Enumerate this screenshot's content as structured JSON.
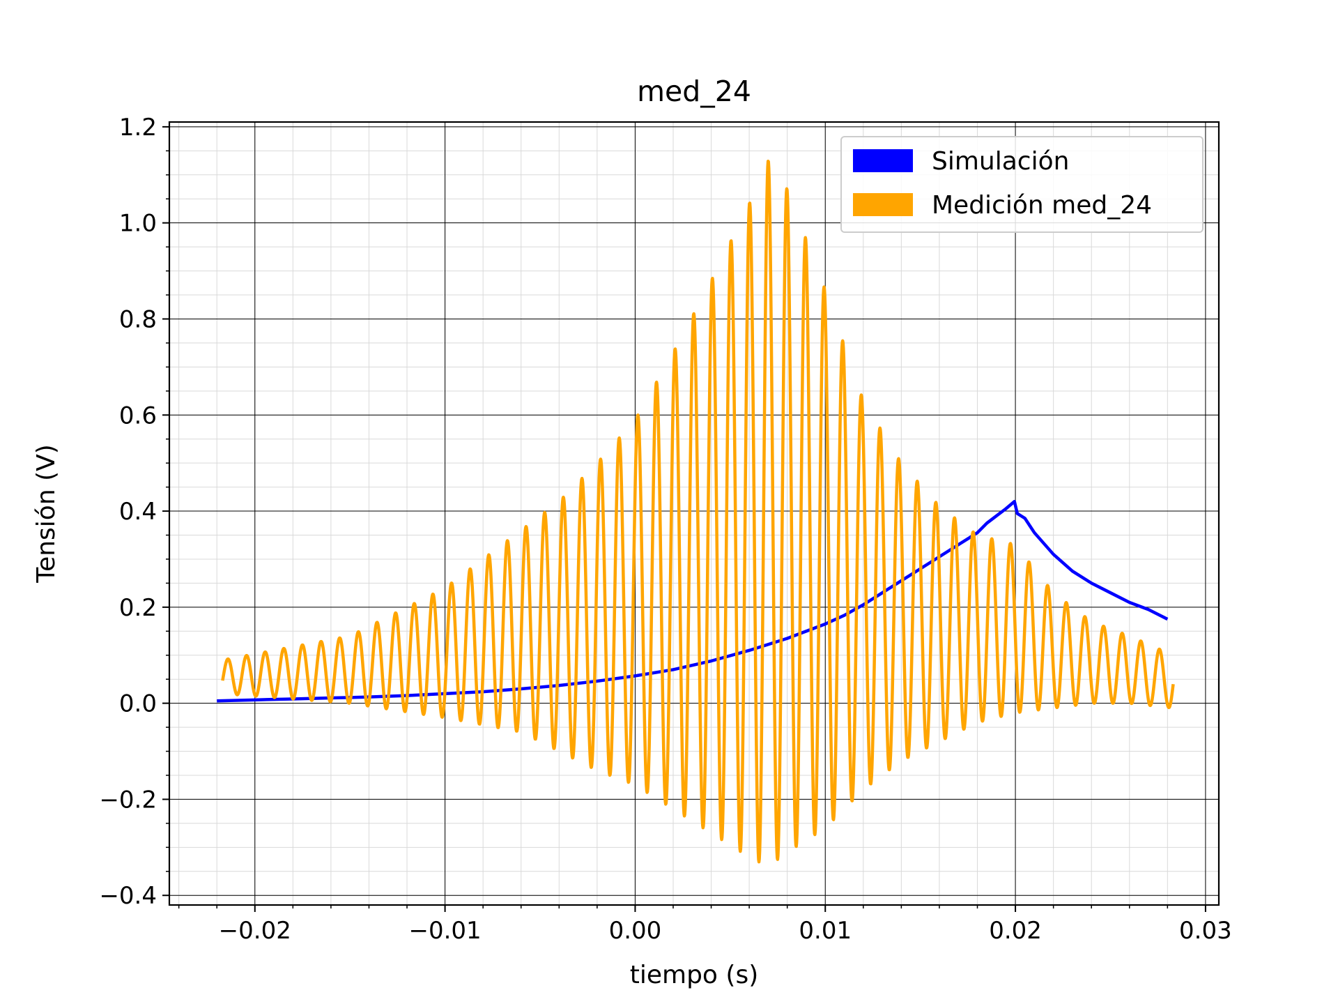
{
  "chart_data": {
    "type": "line",
    "title": "med_24",
    "xlabel": "tiempo (s)",
    "ylabel": "Tensión (V)",
    "xlim": [
      -0.0245,
      0.0307
    ],
    "ylim": [
      -0.42,
      1.21
    ],
    "x_ticks": [
      -0.02,
      -0.01,
      0.0,
      0.01,
      0.02,
      0.03
    ],
    "x_tick_labels": [
      "−0.02",
      "−0.01",
      "0.00",
      "0.01",
      "0.02",
      "0.03"
    ],
    "y_ticks": [
      -0.4,
      -0.2,
      0.0,
      0.2,
      0.4,
      0.6,
      0.8,
      1.0,
      1.2
    ],
    "y_tick_labels": [
      "−0.4",
      "−0.2",
      "0.0",
      "0.2",
      "0.4",
      "0.6",
      "0.8",
      "1.0",
      "1.2"
    ],
    "grid": true,
    "minor_grid": true,
    "legend_position": "top-right",
    "series": [
      {
        "name": "Simulación",
        "color": "#0000ff",
        "x": [
          -0.022,
          -0.02,
          -0.018,
          -0.016,
          -0.014,
          -0.012,
          -0.01,
          -0.008,
          -0.006,
          -0.004,
          -0.002,
          0.0,
          0.002,
          0.004,
          0.006,
          0.008,
          0.01,
          0.011,
          0.012,
          0.013,
          0.014,
          0.015,
          0.016,
          0.017,
          0.018,
          0.0185,
          0.019,
          0.0195,
          0.01995,
          0.0201,
          0.0205,
          0.021,
          0.022,
          0.023,
          0.024,
          0.025,
          0.026,
          0.027,
          0.028
        ],
        "y": [
          0.005,
          0.007,
          0.009,
          0.011,
          0.013,
          0.016,
          0.02,
          0.024,
          0.03,
          0.037,
          0.046,
          0.057,
          0.07,
          0.088,
          0.11,
          0.135,
          0.165,
          0.183,
          0.205,
          0.23,
          0.255,
          0.28,
          0.305,
          0.33,
          0.355,
          0.375,
          0.39,
          0.405,
          0.42,
          0.395,
          0.385,
          0.355,
          0.31,
          0.275,
          0.25,
          0.23,
          0.21,
          0.195,
          0.175
        ]
      },
      {
        "name": "Medición med_24",
        "color": "#ffa500",
        "x_start": -0.0217,
        "x_end": 0.0283,
        "period_s": 0.00098,
        "peak_x": 0.007,
        "envelope_x": [
          -0.0217,
          -0.015,
          -0.01,
          -0.006,
          -0.004,
          -0.002,
          0.0,
          0.002,
          0.004,
          0.006,
          0.007,
          0.008,
          0.01,
          0.012,
          0.014,
          0.016,
          0.018,
          0.02,
          0.022,
          0.024,
          0.026,
          0.0283
        ],
        "envelope_max": [
          0.09,
          0.14,
          0.24,
          0.36,
          0.42,
          0.5,
          0.59,
          0.73,
          0.88,
          1.04,
          1.13,
          1.07,
          0.86,
          0.63,
          0.5,
          0.41,
          0.35,
          0.33,
          0.23,
          0.17,
          0.14,
          0.1
        ],
        "envelope_min": [
          0.02,
          0.0,
          -0.03,
          -0.06,
          -0.1,
          -0.14,
          -0.17,
          -0.22,
          -0.27,
          -0.32,
          -0.34,
          -0.31,
          -0.26,
          -0.18,
          -0.12,
          -0.08,
          -0.04,
          -0.02,
          -0.01,
          0.0,
          0.0,
          -0.01
        ]
      }
    ]
  }
}
